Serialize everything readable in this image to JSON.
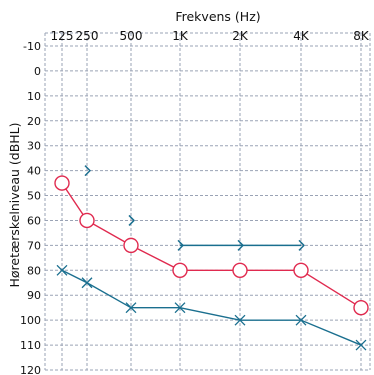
{
  "chart_data": {
    "type": "line",
    "title": "",
    "xlabel": "Frekvens (Hz)",
    "ylabel": "Høretærskelniveau (dBHL)",
    "x_ticks": [
      "125",
      "250",
      "500",
      "1K",
      "2K",
      "4K",
      "8K"
    ],
    "y_ticks": [
      -10,
      0,
      10,
      20,
      30,
      40,
      50,
      60,
      70,
      80,
      90,
      100,
      110,
      120
    ],
    "ylim": [
      -10,
      120
    ],
    "y_inverted": true,
    "grid": true,
    "legend": "none",
    "series": [
      {
        "marker": "circle",
        "color": "#e02a4f",
        "x": [
          "125",
          "250",
          "500",
          "1K",
          "2K",
          "4K",
          "8K"
        ],
        "y": [
          45,
          60,
          70,
          80,
          80,
          80,
          95
        ]
      },
      {
        "marker": "x",
        "color": "#1a6f8f",
        "x": [
          "125",
          "250",
          "500",
          "1K",
          "2K",
          "4K",
          "8K"
        ],
        "y": [
          80,
          85,
          95,
          95,
          100,
          100,
          110
        ]
      },
      {
        "marker": "bracket",
        "color": "#1a6f8f",
        "x": [
          "250",
          "500",
          "1K",
          "2K",
          "4K"
        ],
        "y": [
          40,
          60,
          70,
          70,
          70
        ],
        "connected_from_index": 2
      }
    ]
  }
}
